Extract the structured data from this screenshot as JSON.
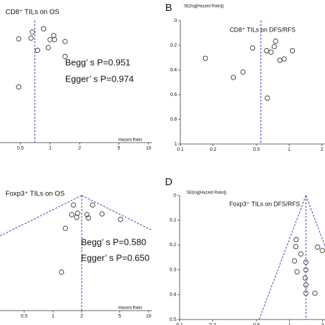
{
  "chart_data": [
    {
      "type": "scatter",
      "title": "CD8⁺ TILs on OS",
      "annotations": [
        "Begg’ s P=0.951",
        "Egger’ s P=0.974"
      ],
      "x_label": "Hazard Ratio",
      "x": [
        0.66,
        0.48,
        0.86,
        0.64,
        0.745,
        1.0,
        1.09,
        1.11,
        0.96,
        1.42,
        1.42,
        0.48
      ],
      "values": [
        0.094,
        0.15,
        0.067,
        0.144,
        0.244,
        0.156,
        0.122,
        0.156,
        0.222,
        0.172,
        0.294,
        0.544
      ],
      "xlim": [
        0.31,
        10.9
      ],
      "ylim": [
        0,
        1
      ],
      "xticks": [
        0.5,
        1,
        2,
        5,
        10
      ],
      "log_x": true,
      "y_reversed": true,
      "reference_line": 0.7,
      "funnel": false,
      "color": "#333333",
      "line_color": "#3a3ab0"
    },
    {
      "type": "scatter",
      "title": "CD8⁺ TILs on DFS/RFS",
      "panel_label": "B",
      "y_label": "SE(log[Hazard Ratio])",
      "x": [
        0.17,
        0.307,
        0.376,
        0.46,
        0.62,
        0.73,
        0.68,
        0.75,
        0.82,
        0.9,
        1.07,
        0.63
      ],
      "values": [
        0.306,
        0.461,
        0.417,
        0.222,
        0.244,
        0.211,
        0.256,
        0.167,
        0.322,
        0.311,
        0.244,
        0.628
      ],
      "xlim": [
        0.1,
        2.5
      ],
      "ylim": [
        0,
        1
      ],
      "xticks": [
        0.1,
        0.2,
        0.5,
        1,
        2
      ],
      "yticks": [
        0,
        0.2,
        0.4,
        0.6,
        0.8,
        1
      ],
      "log_x": true,
      "y_reversed": true,
      "reference_line": 0.55,
      "funnel": false,
      "color": "#333333",
      "line_color": "#3a3ab0"
    },
    {
      "type": "scatter",
      "title": "Foxp3⁺ TILs on OS",
      "annotations": [
        "Begg’ s P=0.580",
        "Egger’ s P=0.650"
      ],
      "x_label": "Hazard Ratio",
      "x": [
        1.64,
        2.6,
        1.81,
        1.57,
        2.27,
        2.35,
        1.77,
        3.26,
        5.08,
        1.35,
        1.23
      ],
      "values": [
        0.237,
        0.237,
        0.441,
        0.475,
        0.475,
        0.559,
        0.542,
        0.458,
        0.593,
        0.814,
        1.898
      ],
      "xlim": [
        0.28,
        10.9
      ],
      "ylim": [
        0,
        2.85
      ],
      "xticks": [
        0.5,
        1,
        2,
        5,
        10
      ],
      "log_x": true,
      "y_reversed": true,
      "reference_line": 2,
      "funnel": true,
      "color": "#333333",
      "line_color": "#3a3ab0"
    },
    {
      "type": "scatter",
      "title": "Foxp3⁺ TILs on DFS/RFS",
      "panel_label": "D",
      "y_label": "SE(log[Hazard Ratio])",
      "x": [
        1.15,
        1.14,
        1.11,
        1.27,
        1.17,
        1.41,
        1.41,
        1.39,
        1.41,
        1.41,
        1.7,
        1.8,
        1.99
      ],
      "values": [
        0.178,
        0.206,
        0.264,
        0.236,
        0.308,
        0.269,
        0.3,
        0.333,
        0.361,
        0.394,
        0.394,
        0.208,
        0.222
      ],
      "xlim": [
        0.1,
        2.5
      ],
      "ylim": [
        0,
        0.5
      ],
      "xticks": [
        0.1,
        0.2,
        0.5,
        1,
        2
      ],
      "yticks": [
        0,
        0.1,
        0.2,
        0.3,
        0.4,
        0.5
      ],
      "log_x": true,
      "y_reversed": true,
      "reference_line": 1.41,
      "funnel": true,
      "color": "#333333",
      "line_color": "#3a3ab0"
    }
  ]
}
